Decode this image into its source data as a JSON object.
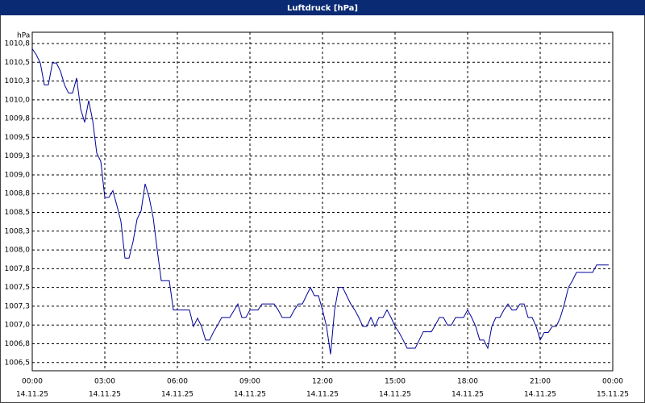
{
  "chart_data": {
    "type": "line",
    "title": "Luftdruck [hPa]",
    "ylabel": "hPa",
    "color": "#000099",
    "grid": true,
    "x": [
      0,
      10,
      20,
      30,
      40,
      50,
      60,
      70,
      80,
      90,
      100,
      110,
      120,
      130,
      140,
      150,
      160,
      170,
      180,
      190,
      200,
      210,
      220,
      230,
      240,
      250,
      260,
      270,
      280,
      290,
      300,
      310,
      320,
      330,
      340,
      350,
      360,
      370,
      380,
      390,
      400,
      410,
      420,
      430,
      440,
      450,
      460,
      470,
      480,
      490,
      500,
      510,
      520,
      530,
      540,
      550,
      560,
      570,
      580,
      590,
      600,
      610,
      620,
      630,
      640,
      650,
      660,
      670,
      680,
      690,
      700,
      710,
      720,
      730,
      740,
      750,
      760,
      770,
      780,
      790,
      800,
      810,
      820,
      830,
      840,
      850,
      860,
      870,
      880,
      890,
      900,
      910,
      920,
      930,
      940,
      950,
      960,
      970,
      980,
      990,
      1000,
      1010,
      1020,
      1030,
      1040,
      1050,
      1060,
      1070,
      1080,
      1090,
      1100,
      1110,
      1120,
      1130,
      1140,
      1150,
      1160,
      1170,
      1180,
      1190,
      1200,
      1210,
      1220,
      1230,
      1240,
      1250,
      1260,
      1270,
      1280,
      1290,
      1300,
      1310,
      1320,
      1330,
      1340,
      1350,
      1360,
      1370,
      1380,
      1390,
      1400,
      1410,
      1420,
      1430
    ],
    "values": [
      1010.68,
      1010.6,
      1010.49,
      1010.2,
      1010.2,
      1010.49,
      1010.49,
      1010.38,
      1010.2,
      1010.09,
      1010.09,
      1010.29,
      1009.88,
      1009.7,
      1009.99,
      1009.72,
      1009.29,
      1009.18,
      1008.7,
      1008.7,
      1008.79,
      1008.59,
      1008.38,
      1007.89,
      1007.89,
      1008.11,
      1008.41,
      1008.52,
      1008.88,
      1008.7,
      1008.43,
      1008.0,
      1007.59,
      1007.59,
      1007.59,
      1007.2,
      1007.2,
      1007.2,
      1007.2,
      1007.2,
      1006.98,
      1007.09,
      1006.98,
      1006.8,
      1006.8,
      1006.91,
      1007.0,
      1007.1,
      1007.1,
      1007.1,
      1007.19,
      1007.28,
      1007.1,
      1007.1,
      1007.2,
      1007.2,
      1007.2,
      1007.28,
      1007.28,
      1007.28,
      1007.28,
      1007.2,
      1007.1,
      1007.1,
      1007.1,
      1007.2,
      1007.28,
      1007.28,
      1007.39,
      1007.5,
      1007.39,
      1007.39,
      1007.2,
      1006.98,
      1006.61,
      1007.2,
      1007.5,
      1007.5,
      1007.39,
      1007.28,
      1007.2,
      1007.1,
      1006.98,
      1006.98,
      1007.1,
      1006.98,
      1007.1,
      1007.1,
      1007.2,
      1007.1,
      1006.98,
      1006.9,
      1006.8,
      1006.69,
      1006.69,
      1006.69,
      1006.8,
      1006.91,
      1006.91,
      1006.91,
      1007.0,
      1007.1,
      1007.1,
      1007.0,
      1007.0,
      1007.1,
      1007.1,
      1007.1,
      1007.2,
      1007.1,
      1006.98,
      1006.8,
      1006.8,
      1006.69,
      1006.98,
      1007.1,
      1007.1,
      1007.2,
      1007.28,
      1007.2,
      1007.2,
      1007.28,
      1007.28,
      1007.1,
      1007.1,
      1006.98,
      1006.8,
      1006.9,
      1006.9,
      1006.98,
      1006.98,
      1007.1,
      1007.28,
      1007.5,
      1007.59,
      1007.7,
      1007.7,
      1007.7,
      1007.7,
      1007.7,
      1007.8,
      1007.8,
      1007.8,
      1007.8
    ],
    "xlim": [
      0,
      1440
    ],
    "xticks": [
      {
        "value": 0,
        "label": "00:00"
      },
      {
        "value": 180,
        "label": "03:00"
      },
      {
        "value": 360,
        "label": "06:00"
      },
      {
        "value": 540,
        "label": "09:00"
      },
      {
        "value": 720,
        "label": "12:00"
      },
      {
        "value": 900,
        "label": "15:00"
      },
      {
        "value": 1080,
        "label": "18:00"
      },
      {
        "value": 1260,
        "label": "21:00"
      },
      {
        "value": 1440,
        "label": "00:00"
      }
    ],
    "xtick_dates": [
      "14.11.25",
      "14.11.25",
      "14.11.25",
      "14.11.25",
      "14.11.25",
      "14.11.25",
      "14.11.25",
      "14.11.25",
      "15.11.25"
    ],
    "ylim": [
      1006.39,
      1010.9
    ],
    "yticks": [
      {
        "value": 1006.5,
        "label": "1006,5"
      },
      {
        "value": 1006.75,
        "label": "1006,8"
      },
      {
        "value": 1007.0,
        "label": "1007,0"
      },
      {
        "value": 1007.25,
        "label": "1007,3"
      },
      {
        "value": 1007.5,
        "label": "1007,5"
      },
      {
        "value": 1007.75,
        "label": "1007,8"
      },
      {
        "value": 1008.0,
        "label": "1008,0"
      },
      {
        "value": 1008.25,
        "label": "1008,3"
      },
      {
        "value": 1008.5,
        "label": "1008,5"
      },
      {
        "value": 1008.75,
        "label": "1008,8"
      },
      {
        "value": 1009.0,
        "label": "1009,0"
      },
      {
        "value": 1009.25,
        "label": "1009,3"
      },
      {
        "value": 1009.5,
        "label": "1009,5"
      },
      {
        "value": 1009.75,
        "label": "1009,8"
      },
      {
        "value": 1010.0,
        "label": "1010,0"
      },
      {
        "value": 1010.25,
        "label": "1010,3"
      },
      {
        "value": 1010.5,
        "label": "1010,5"
      },
      {
        "value": 1010.75,
        "label": "1010,8"
      }
    ]
  }
}
